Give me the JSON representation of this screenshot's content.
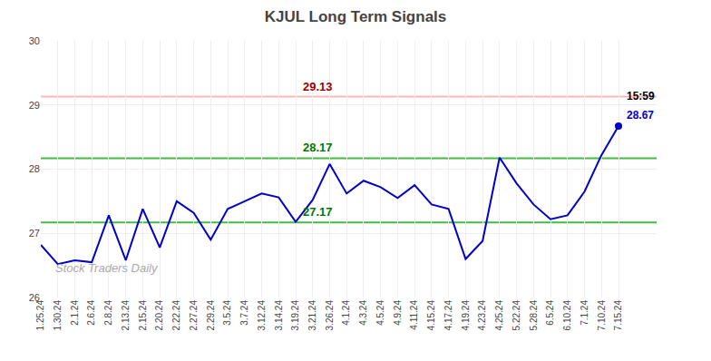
{
  "chart_data": {
    "type": "line",
    "title": "KJUL Long Term Signals",
    "categories": [
      "1.25.24",
      "1.30.24",
      "2.1.24",
      "2.6.24",
      "2.8.24",
      "2.13.24",
      "2.15.24",
      "2.20.24",
      "2.22.24",
      "2.27.24",
      "2.29.24",
      "3.5.24",
      "3.7.24",
      "3.12.24",
      "3.14.24",
      "3.19.24",
      "3.21.24",
      "3.26.24",
      "4.1.24",
      "4.3.24",
      "4.5.24",
      "4.9.24",
      "4.11.24",
      "4.15.24",
      "4.17.24",
      "4.19.24",
      "4.23.24",
      "4.25.24",
      "5.22.24",
      "5.28.24",
      "6.5.24",
      "6.10.24",
      "7.1.24",
      "7.10.24",
      "7.15.24"
    ],
    "values": [
      26.82,
      26.52,
      26.58,
      26.55,
      27.28,
      26.58,
      27.38,
      26.78,
      27.5,
      27.32,
      26.9,
      27.38,
      27.5,
      27.62,
      27.56,
      27.18,
      27.52,
      28.08,
      27.62,
      27.82,
      27.72,
      27.55,
      27.75,
      27.45,
      27.38,
      26.6,
      26.88,
      28.18,
      27.78,
      27.45,
      27.22,
      27.28,
      27.65,
      28.22,
      28.67
    ],
    "color": "#0000cc",
    "last_point": {
      "marker": "circle",
      "color": "#0000cc"
    },
    "ylim": [
      26,
      30
    ],
    "yticks": [
      26,
      27,
      28,
      29,
      30
    ],
    "grid": true,
    "reference_lines": [
      {
        "value": 29.13,
        "label": "29.13",
        "color": "#ffb8b8",
        "label_color": "#990000"
      },
      {
        "value": 28.17,
        "label": "28.17",
        "color": "#44bb44",
        "label_color": "#007700"
      },
      {
        "value": 27.17,
        "label": "27.17",
        "color": "#44bb44",
        "label_color": "#007700"
      }
    ],
    "annotations": [
      {
        "text": "15:59",
        "color": "#000000"
      },
      {
        "text": "28.67",
        "color": "#0000cc"
      }
    ],
    "watermark": {
      "text": "Stock Traders Daily",
      "color": "#aaaaaa"
    }
  }
}
